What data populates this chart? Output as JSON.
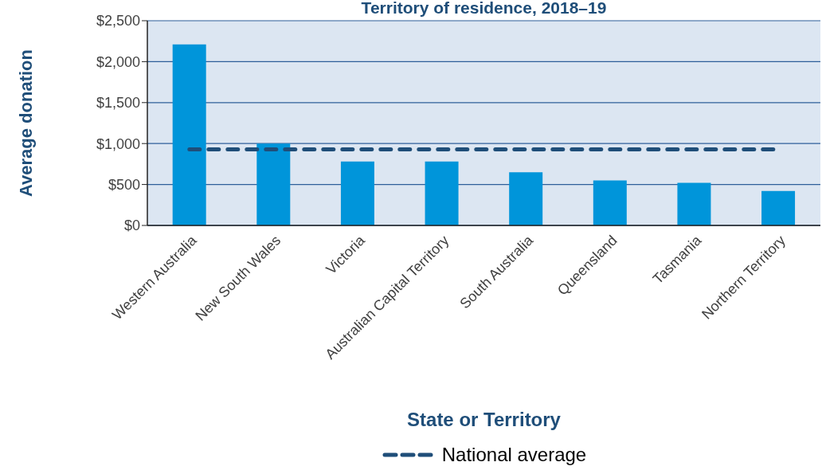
{
  "chart_data": {
    "type": "bar",
    "title": "Territory of residence, 2018–19",
    "xlabel": "State or Territory",
    "ylabel": "Average donation",
    "categories": [
      "Western Australia",
      "New South Wales",
      "Victoria",
      "Australian Capital Territory",
      "South Australia",
      "Queensland",
      "Tasmania",
      "Northern Territory"
    ],
    "series": [
      {
        "color": "#0095da",
        "values": [
          2210,
          1000,
          780,
          780,
          650,
          550,
          520,
          420
        ]
      },
      {
        "type": "line",
        "name": "National average",
        "color": "#1f4e79",
        "values": [
          930,
          930,
          930,
          930,
          930,
          930,
          930,
          930
        ],
        "line_style": "dashed",
        "marker": "none"
      }
    ],
    "ylim": [
      0,
      2500
    ],
    "yticks": [
      {
        "value": 0,
        "label": "$0"
      },
      {
        "value": 500,
        "label": "$500"
      },
      {
        "value": 1000,
        "label": "$1,000"
      },
      {
        "value": 1500,
        "label": "$1,500"
      },
      {
        "value": 2000,
        "label": "$2,000"
      },
      {
        "value": 2500,
        "label": "$2,500"
      }
    ],
    "grid": "y",
    "legend": "bottom"
  }
}
